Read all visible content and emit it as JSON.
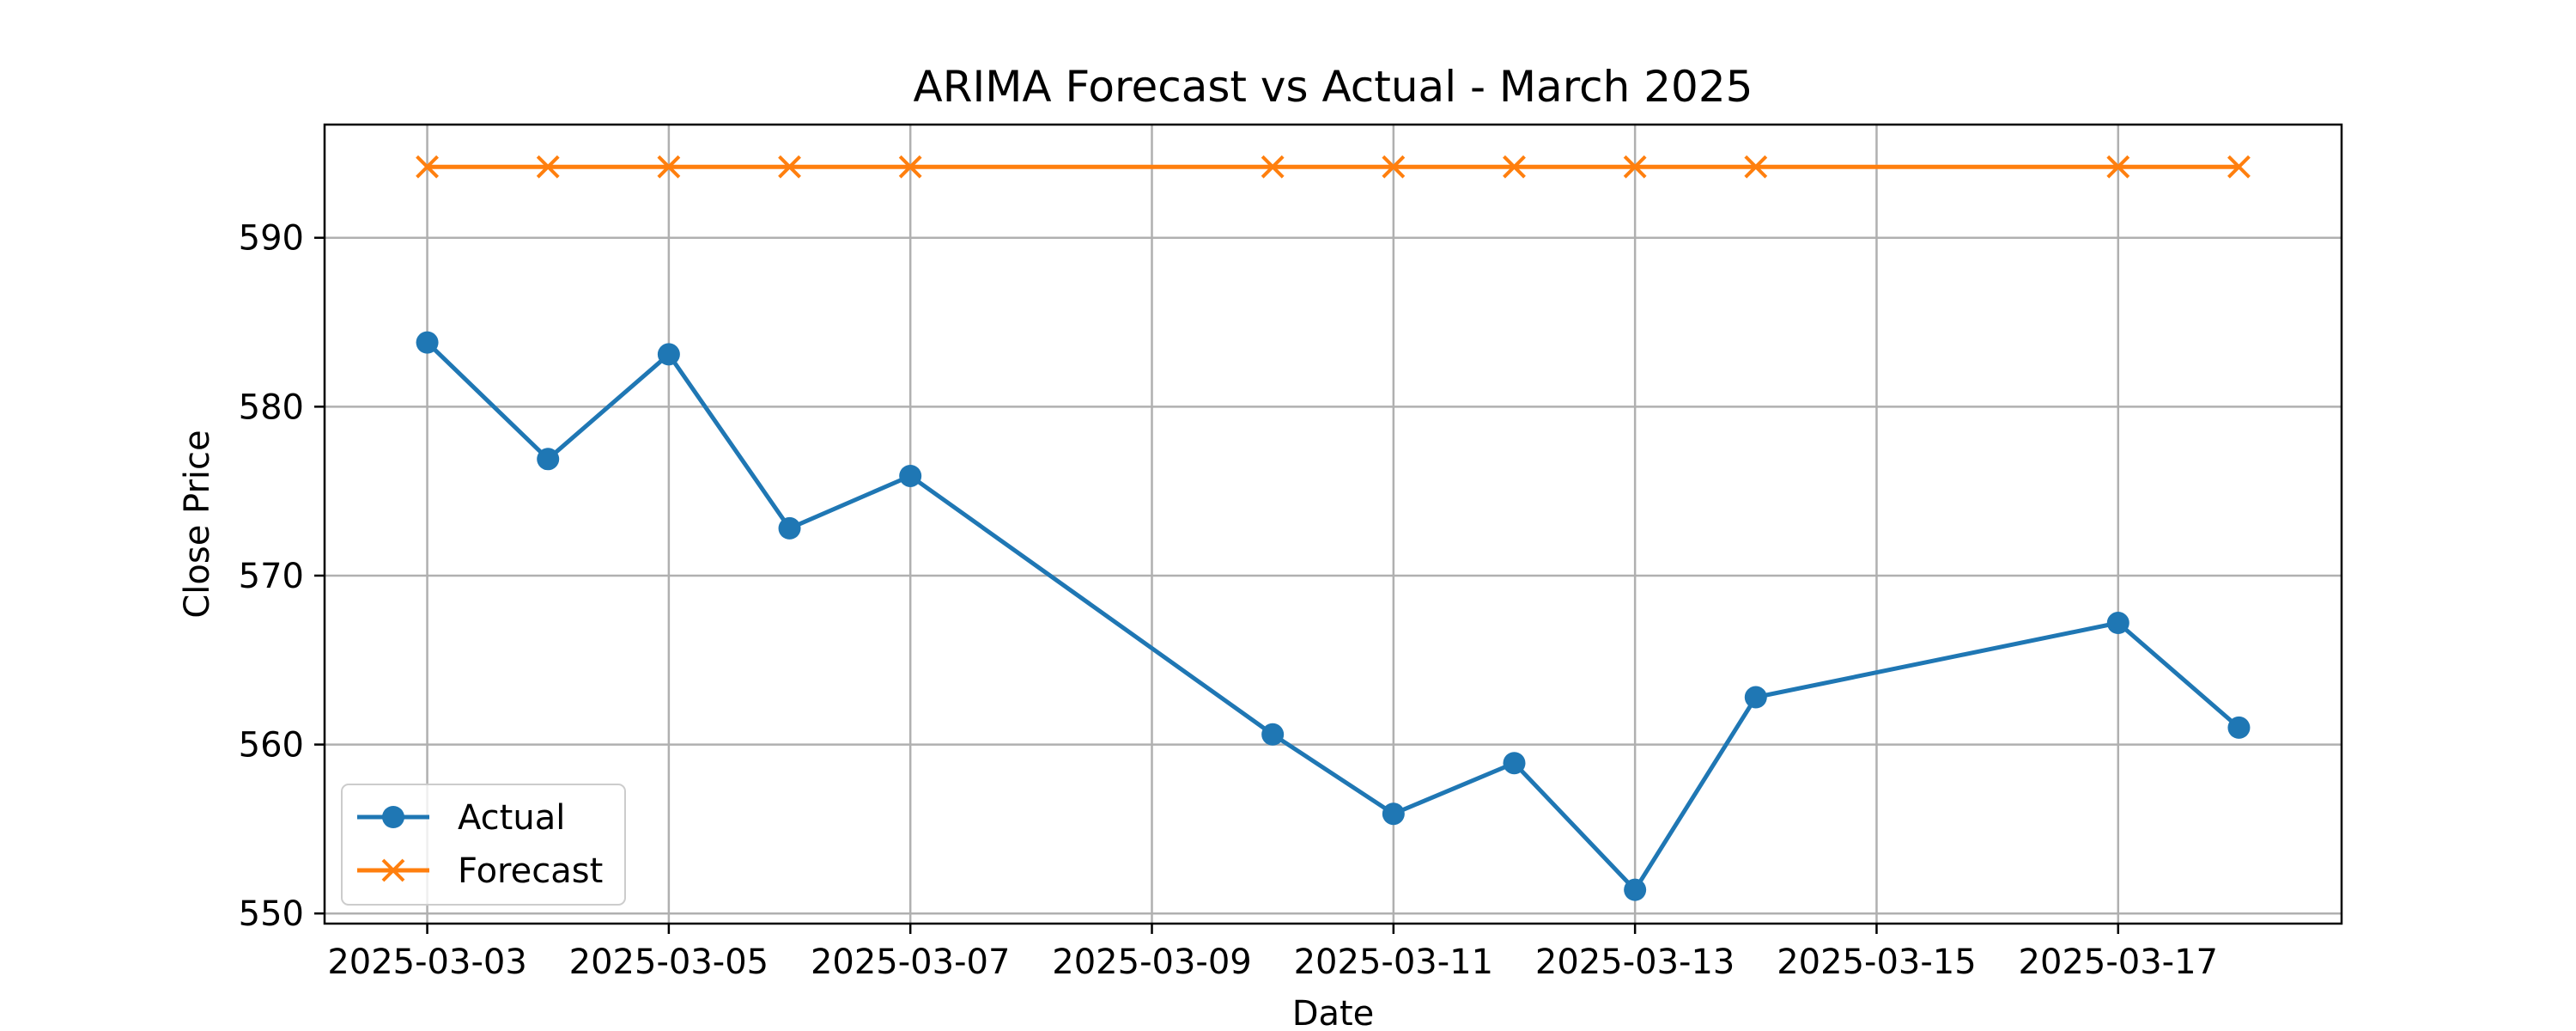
{
  "chart_data": {
    "type": "line",
    "title": "ARIMA Forecast vs Actual - March 2025",
    "xlabel": "Date",
    "ylabel": "Close Price",
    "grid": true,
    "legend_position": "lower-left",
    "x_ticks": [
      "2025-03-03",
      "2025-03-05",
      "2025-03-07",
      "2025-03-09",
      "2025-03-11",
      "2025-03-13",
      "2025-03-15",
      "2025-03-17"
    ],
    "y_ticks": [
      550,
      560,
      570,
      580,
      590
    ],
    "xlim": [
      "2025-03-02",
      "2025-03-19"
    ],
    "ylim": [
      549.4,
      596.7
    ],
    "series": [
      {
        "name": "Actual",
        "color": "#1f77b4",
        "marker": "circle",
        "points": [
          {
            "x": "2025-03-03",
            "y": 583.8
          },
          {
            "x": "2025-03-04",
            "y": 576.9
          },
          {
            "x": "2025-03-05",
            "y": 583.1
          },
          {
            "x": "2025-03-06",
            "y": 572.8
          },
          {
            "x": "2025-03-07",
            "y": 575.9
          },
          {
            "x": "2025-03-10",
            "y": 560.6
          },
          {
            "x": "2025-03-11",
            "y": 555.9
          },
          {
            "x": "2025-03-12",
            "y": 558.9
          },
          {
            "x": "2025-03-13",
            "y": 551.4
          },
          {
            "x": "2025-03-14",
            "y": 562.8
          },
          {
            "x": "2025-03-17",
            "y": 567.2
          },
          {
            "x": "2025-03-18",
            "y": 561.0
          }
        ]
      },
      {
        "name": "Forecast",
        "color": "#ff7f0e",
        "marker": "x",
        "points": [
          {
            "x": "2025-03-03",
            "y": 594.2
          },
          {
            "x": "2025-03-04",
            "y": 594.2
          },
          {
            "x": "2025-03-05",
            "y": 594.2
          },
          {
            "x": "2025-03-06",
            "y": 594.2
          },
          {
            "x": "2025-03-07",
            "y": 594.2
          },
          {
            "x": "2025-03-10",
            "y": 594.2
          },
          {
            "x": "2025-03-11",
            "y": 594.2
          },
          {
            "x": "2025-03-12",
            "y": 594.2
          },
          {
            "x": "2025-03-13",
            "y": 594.2
          },
          {
            "x": "2025-03-14",
            "y": 594.2
          },
          {
            "x": "2025-03-17",
            "y": 594.2
          },
          {
            "x": "2025-03-18",
            "y": 594.2
          }
        ]
      }
    ]
  }
}
